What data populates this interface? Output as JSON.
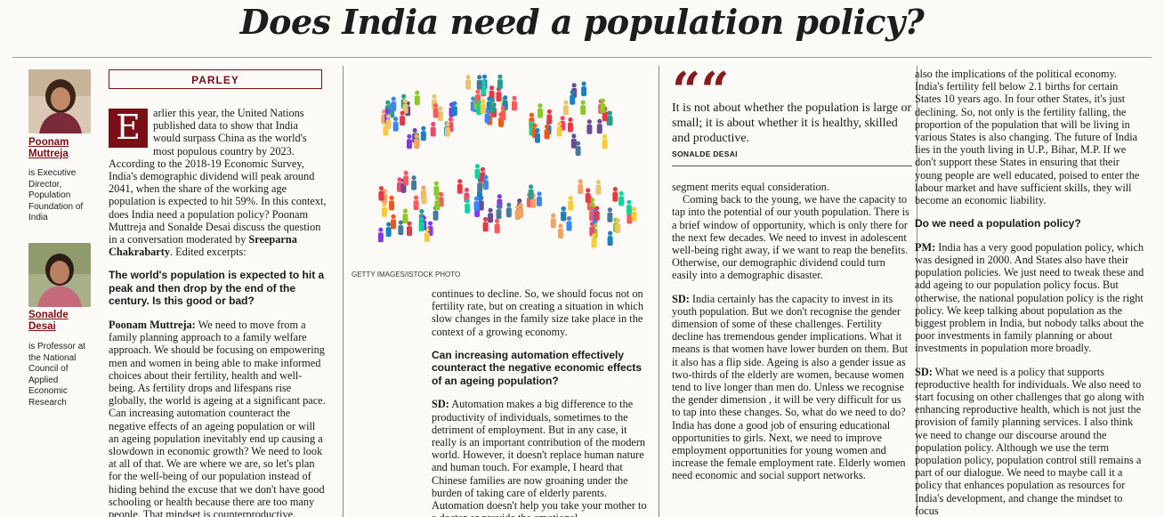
{
  "headline": "Does India need a population policy?",
  "section_label": "PARLEY",
  "authors": [
    {
      "name_line1": "Poonam",
      "name_line2": "Muttreja",
      "desc": "is Executive Director, Population Foundation of India"
    },
    {
      "name_line1": "Sonalde",
      "name_line2": "Desai",
      "desc": "is Professor at the National Council of Applied Economic Research"
    }
  ],
  "intro": {
    "dropcap": "E",
    "text": "arlier this year, the United Nations published data to show that India would surpass China as the world's most populous country by 2023. According to the 2018-19 Economic Survey, India's demographic dividend will peak around 2041, when the share of the working age population is expected to hit 59%. In this context, does India need a population policy? Poonam Muttreja and Sonalde Desai discuss the question in a conversation moderated by",
    "moderator": "Sreeparna Chakrabarty",
    "tail": ". Edited excerpts:"
  },
  "q1": "The world's population is expected to hit a peak and then drop by the end of the century. Is this good or bad?",
  "a1_speaker": "Poonam Muttreja:",
  "a1_text": " We need to move from a family planning approach to a family welfare approach. We should be focusing on empowering men and women in being able to make informed choices about their fertility, health and well-being. As fertility drops and lifespans rise globally, the world is ageing at a significant pace. Can increasing automation counteract the negative effects of an ageing population or will an ageing population inevitably end up causing a slowdown in economic growth? We need to look at all of that. We are where we are, so let's plan for the well-being of our population instead of hiding behind the excuse that we don't have good schooling or health because there are too many people. That mindset is counterproductive.",
  "photo_credit": "GETTY IMAGES/ISTOCK PHOTO",
  "col2_text": "continues to decline. So, we should focus not on fertility rate, but on creating a situation in which slow changes in the family size take place in the context of a growing economy.",
  "q2": "Can increasing automation effectively counteract the negative economic effects of an ageing population?",
  "a2_speaker": "SD:",
  "a2_text": " Automation makes a big difference to the productivity of individuals, sometimes to the detriment of employment. But in any case, it really is an important contribution of the modern world. However, it doesn't replace human nature and human touch. For example, I heard that Chinese families are now groaning under the burden of taking care of elderly parents. Automation doesn't help you take your mother to a doctor or provide the emotional",
  "pull_quote": "It is not about whether the population is large or small; it is about whether it is healthy, skilled and productive.",
  "pull_author": "SONALDE DESAI",
  "col3_p1": "segment merits equal consideration.",
  "col3_p2": "Coming back to the young, we have the capacity to tap into the potential of our youth population. There is a brief window of opportunity, which is only there for the next few decades. We need to invest in adolescent well-being right away, if we want to reap the benefits. Otherwise, our demographic dividend could turn easily into a demographic disaster.",
  "col3_speaker": "SD:",
  "col3_p3": " India certainly has the capacity to invest in its youth population. But we don't recognise the gender dimension of some of these challenges. Fertility decline has tremendous gender implications. What it means is that women have lower burden on them. But it also has a flip side. Ageing is also a gender issue as two-thirds of the elderly are women, because women tend to live longer than men do. Unless we recognise the gender dimension , it will be very difficult for us to tap into these changes. So, what do we need to do? India has done a good job of ensuring educational opportunities to girls. Next, we need to improve employment opportunities for young women and increase the female employment rate. Elderly women need economic and social support networks.",
  "col4_p1": "also the implications of the political economy. India's fertility fell below 2.1 births for certain States 10 years ago. In four other States, it's just declining. So, not only is the fertility falling, the proportion of the population that will be living in various States is also changing. The future of India lies in the youth living in U.P., Bihar, M.P. If we don't support these States in ensuring that their young people are well educated, poised to enter the labour market and have sufficient skills, they will become an economic liability.",
  "q3": "Do we need a population policy?",
  "col4_pm_speaker": "PM:",
  "col4_pm": " India has a very good population policy, which was designed in 2000. And States also have their population policies. We just need to tweak these and add ageing to our population policy focus. But otherwise, the national population policy is the right policy. We keep talking about population as the biggest problem in India, but nobody talks about the poor investments in family planning or about investments in population more broadly.",
  "col4_sd_speaker": "SD:",
  "col4_sd": " What we need is a policy that supports reproductive health for individuals. We also need to start focusing on other challenges that go along with enhancing reproductive health, which is not just the provision of family planning services. I also think we need to change our discourse around the population policy. Although we use the term population policy, population control still remains a part of our dialogue. We need to maybe call it a policy that enhances population as resources for India's development, and change the mindset to focus",
  "colors": {
    "accent": "#7a0d15",
    "quote": "#8b1a1f"
  }
}
